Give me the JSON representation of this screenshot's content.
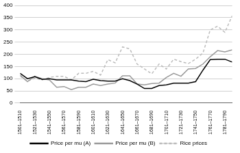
{
  "chart_data": {
    "type": "line",
    "categories": [
      "1501–1510",
      null,
      "1521–1530",
      null,
      "1541–1550",
      null,
      "1561–1570",
      null,
      "1581–1590",
      null,
      "1601–1610",
      null,
      "1621–1630",
      null,
      "1641–1650",
      null,
      "1661–1670",
      null,
      "1681–1690",
      null,
      "1701–1710",
      null,
      "1721–1730",
      null,
      "1741–1750",
      null,
      "1761–1770",
      null,
      "1781–1790",
      null
    ],
    "series": [
      {
        "name": "Price per mu (A)",
        "color": "#000000",
        "line_style": "solid",
        "values": [
          122,
          100,
          108,
          97,
          100,
          95,
          95,
          95,
          90,
          88,
          98,
          92,
          90,
          90,
          100,
          92,
          78,
          60,
          60,
          72,
          75,
          82,
          82,
          82,
          88,
          135,
          178,
          180,
          180,
          168
        ]
      },
      {
        "name": "Price per mu (B)",
        "color": "#999999",
        "line_style": "solid",
        "values": [
          115,
          88,
          110,
          100,
          95,
          65,
          68,
          55,
          65,
          65,
          78,
          72,
          78,
          82,
          112,
          112,
          78,
          75,
          80,
          82,
          105,
          122,
          110,
          140,
          142,
          160,
          190,
          215,
          210,
          218
        ]
      },
      {
        "name": "Rice prices",
        "color": "#bbbbbb",
        "line_style": "dashed",
        "values": [
          110,
          90,
          102,
          95,
          105,
          110,
          110,
          95,
          122,
          122,
          130,
          115,
          178,
          165,
          230,
          222,
          160,
          140,
          120,
          160,
          140,
          180,
          170,
          162,
          180,
          205,
          300,
          315,
          290,
          358
        ]
      }
    ],
    "ylim": [
      0,
      400
    ],
    "yticks": [
      0,
      50,
      100,
      150,
      200,
      250,
      300,
      350,
      400
    ],
    "grid": true,
    "legend": "bottom"
  }
}
